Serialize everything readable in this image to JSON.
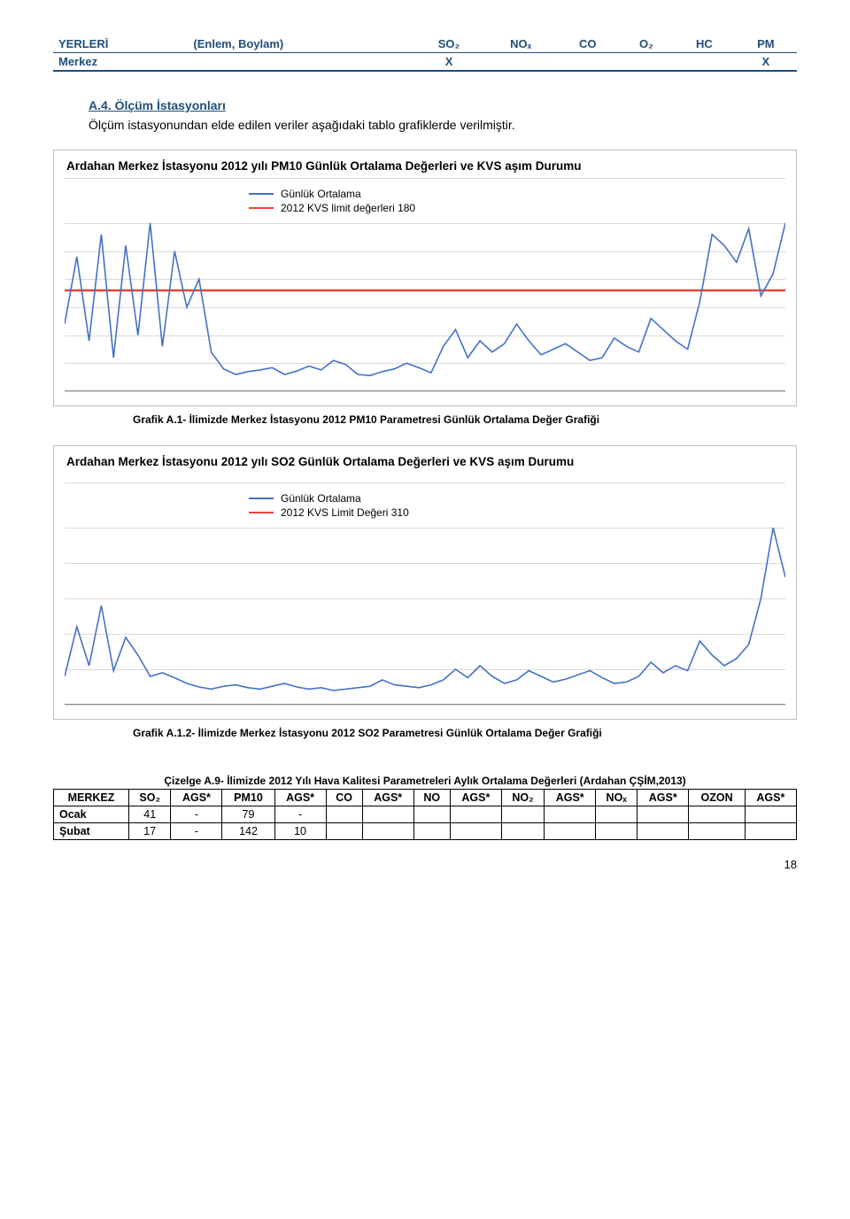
{
  "header_table": {
    "cols": [
      "YERLERİ",
      "(Enlem, Boylam)",
      "SO₂",
      "NOₓ",
      "CO",
      "O₂",
      "HC",
      "PM"
    ],
    "row": [
      "Merkez",
      "",
      "X",
      "",
      "",
      "",
      "",
      "X"
    ]
  },
  "section": {
    "title": "A.4. Ölçüm İstasyonları",
    "intro": "Ölçüm istasyonundan elde edilen veriler aşağıdaki tablo grafiklerde verilmiştir."
  },
  "chart1": {
    "title": "Ardahan Merkez İstasyonu 2012 yılı PM10 Günlük Ortalama Değerleri ve KVS aşım Durumu",
    "legend": [
      {
        "label": "Günlük Ortalama",
        "color": "#4472c4"
      },
      {
        "label": "2012 KVS limit değerleri 180",
        "color": "#e8443a"
      }
    ],
    "grid_color": "#d9d9d9",
    "series_color": "#4472c4",
    "limit_color": "#e8443a",
    "ylim_max": 300,
    "limit_value": 180,
    "grid_lines": [
      0,
      50,
      100,
      150,
      200,
      250,
      300
    ],
    "caption": "Grafik A.1- İlimizde Merkez İstasyonu 2012 PM10 Parametresi Günlük Ortalama Değer Grafiği",
    "values": [
      120,
      240,
      90,
      280,
      60,
      260,
      100,
      300,
      80,
      250,
      150,
      200,
      70,
      40,
      30,
      35,
      38,
      42,
      30,
      36,
      45,
      38,
      55,
      48,
      30,
      28,
      35,
      40,
      50,
      42,
      33,
      80,
      110,
      60,
      90,
      70,
      85,
      120,
      90,
      65,
      75,
      85,
      70,
      55,
      60,
      95,
      80,
      70,
      130,
      110,
      90,
      75,
      160,
      280,
      260,
      230,
      290,
      170,
      210,
      300
    ]
  },
  "chart2": {
    "title": "Ardahan Merkez İstasyonu 2012 yılı SO2 Günlük Ortalama Değerleri ve KVS aşım Durumu",
    "legend": [
      {
        "label": "Günlük Ortalama",
        "color": "#4472c4"
      },
      {
        "label": "2012 KVS Limit Değeri 310",
        "color": "#e8443a"
      }
    ],
    "grid_color": "#d9d9d9",
    "series_color": "#4472c4",
    "ylim_max": 250,
    "grid_lines": [
      0,
      50,
      100,
      150,
      200,
      250
    ],
    "caption": "Grafik A.1.2- İlimizde Merkez İstasyonu 2012 SO2 Parametresi Günlük Ortalama Değer Grafiği",
    "values": [
      40,
      110,
      55,
      140,
      48,
      95,
      70,
      40,
      45,
      38,
      30,
      25,
      22,
      26,
      28,
      24,
      22,
      26,
      30,
      25,
      22,
      24,
      20,
      22,
      24,
      26,
      35,
      28,
      26,
      24,
      28,
      35,
      50,
      38,
      55,
      40,
      30,
      35,
      48,
      40,
      32,
      36,
      42,
      48,
      38,
      30,
      32,
      40,
      60,
      45,
      55,
      48,
      90,
      70,
      55,
      65,
      85,
      150,
      250,
      180
    ]
  },
  "table_a9": {
    "caption": "Çizelge A.9- İlimizde 2012 Yılı Hava Kalitesi Parametreleri Aylık Ortalama Değerleri (Ardahan ÇŞİM,2013)",
    "columns": [
      "MERKEZ",
      "SO₂",
      "AGS*",
      "PM10",
      "AGS*",
      "CO",
      "AGS*",
      "NO",
      "AGS*",
      "NO₂",
      "AGS*",
      "NOₓ",
      "AGS*",
      "OZON",
      "AGS*"
    ],
    "rows": [
      [
        "Ocak",
        "41",
        "-",
        "79",
        "-",
        "",
        "",
        "",
        "",
        "",
        "",
        "",
        "",
        "",
        ""
      ],
      [
        "Şubat",
        "17",
        "-",
        "142",
        "10",
        "",
        "",
        "",
        "",
        "",
        "",
        "",
        "",
        "",
        ""
      ]
    ]
  },
  "page_number": "18"
}
